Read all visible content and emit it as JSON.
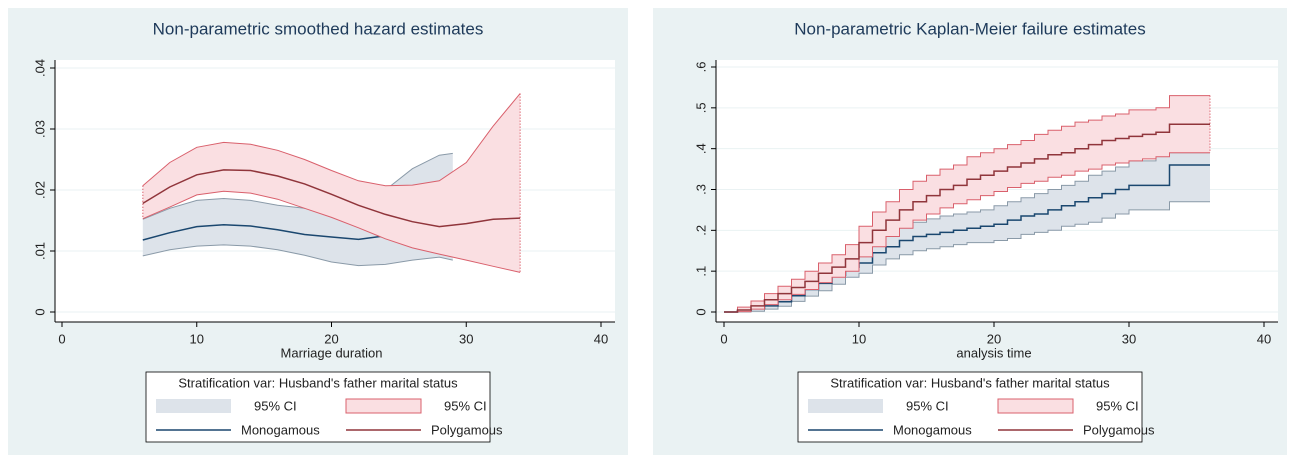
{
  "chart_data": [
    {
      "type": "line",
      "title": "Non-parametric smoothed hazard estimates",
      "xlabel": "Marriage duration",
      "legend_title": "Stratification var: Husband's father marital status",
      "xlim": [
        0,
        40
      ],
      "xticks": [
        0,
        10,
        20,
        30,
        40
      ],
      "ylim": [
        0,
        0.04
      ],
      "yticks": [
        0,
        {
          "value": 0.01,
          "label": ".01"
        },
        {
          "value": 0.02,
          "label": ".02"
        },
        {
          "value": 0.03,
          "label": ".03"
        },
        {
          "value": 0.04,
          "label": ".04"
        }
      ],
      "grid": true,
      "series": [
        {
          "name": "Monogamous",
          "ci_name": "95% CI",
          "color": "#1a476f",
          "ci_fill": "#dde3ea",
          "ci_stroke": "#8a9aa8",
          "x": [
            6,
            8,
            10,
            12,
            14,
            16,
            18,
            20,
            22,
            24,
            26,
            28,
            29
          ],
          "values": [
            0.0118,
            0.013,
            0.014,
            0.0143,
            0.0141,
            0.0135,
            0.0127,
            0.0123,
            0.0119,
            0.0125,
            0.0138,
            0.015,
            0.0149
          ],
          "lower": [
            0.0092,
            0.0102,
            0.0108,
            0.011,
            0.0108,
            0.0102,
            0.0093,
            0.0082,
            0.0076,
            0.0078,
            0.0085,
            0.009,
            0.0085
          ],
          "upper": [
            0.0152,
            0.017,
            0.0183,
            0.0186,
            0.0183,
            0.0175,
            0.017,
            0.0168,
            0.0175,
            0.02,
            0.0235,
            0.0257,
            0.026
          ]
        },
        {
          "name": "Polygamous",
          "ci_name": "95% CI",
          "color": "#90353b",
          "ci_fill": "#fadfe2",
          "ci_stroke": "#d9606c",
          "x": [
            6,
            8,
            10,
            12,
            14,
            16,
            18,
            20,
            22,
            24,
            26,
            28,
            30,
            32,
            34
          ],
          "values": [
            0.0178,
            0.0205,
            0.0225,
            0.0233,
            0.0232,
            0.0223,
            0.021,
            0.0193,
            0.0175,
            0.016,
            0.0148,
            0.014,
            0.0145,
            0.0152,
            0.0154
          ],
          "lower": [
            0.0153,
            0.0172,
            0.0192,
            0.0198,
            0.0195,
            0.0185,
            0.017,
            0.0155,
            0.0138,
            0.012,
            0.0105,
            0.0095,
            0.0085,
            0.0075,
            0.0065
          ],
          "upper": [
            0.0207,
            0.0245,
            0.027,
            0.0278,
            0.0275,
            0.0265,
            0.025,
            0.0232,
            0.0215,
            0.0207,
            0.0208,
            0.0215,
            0.0245,
            0.0305,
            0.0358
          ]
        }
      ]
    },
    {
      "type": "step",
      "title": "Non-parametric Kaplan-Meier failure estimates",
      "xlabel": "analysis time",
      "legend_title": "Stratification var: Husband's father marital status",
      "xlim": [
        0,
        40
      ],
      "xticks": [
        0,
        10,
        20,
        30,
        40
      ],
      "ylim": [
        0,
        0.6
      ],
      "yticks": [
        0,
        {
          "value": 0.1,
          "label": ".1"
        },
        {
          "value": 0.2,
          "label": ".2"
        },
        {
          "value": 0.3,
          "label": ".3"
        },
        {
          "value": 0.4,
          "label": ".4"
        },
        {
          "value": 0.5,
          "label": ".5"
        },
        {
          "value": 0.6,
          "label": ".6"
        }
      ],
      "grid": true,
      "series": [
        {
          "name": "Monogamous",
          "ci_name": "95% CI",
          "color": "#1a476f",
          "ci_fill": "#dde3ea",
          "ci_stroke": "#8a9aa8",
          "x": [
            0,
            1,
            2,
            3,
            4,
            5,
            6,
            7,
            8,
            9,
            10,
            11,
            12,
            13,
            14,
            15,
            16,
            17,
            18,
            19,
            20,
            21,
            22,
            23,
            24,
            25,
            26,
            27,
            28,
            29,
            30,
            31,
            32,
            33,
            36
          ],
          "values": [
            0,
            0.003,
            0.008,
            0.015,
            0.025,
            0.04,
            0.055,
            0.07,
            0.09,
            0.11,
            0.12,
            0.145,
            0.16,
            0.175,
            0.185,
            0.19,
            0.195,
            0.2,
            0.205,
            0.21,
            0.215,
            0.225,
            0.235,
            0.24,
            0.25,
            0.26,
            0.27,
            0.28,
            0.29,
            0.3,
            0.31,
            0.31,
            0.31,
            0.36,
            0.36
          ],
          "lower": [
            0,
            0,
            0.002,
            0.007,
            0.014,
            0.026,
            0.039,
            0.052,
            0.068,
            0.085,
            0.095,
            0.115,
            0.13,
            0.14,
            0.15,
            0.155,
            0.16,
            0.165,
            0.17,
            0.17,
            0.175,
            0.18,
            0.19,
            0.195,
            0.2,
            0.21,
            0.215,
            0.22,
            0.23,
            0.24,
            0.25,
            0.25,
            0.25,
            0.27,
            0.27
          ],
          "upper": [
            0,
            0.008,
            0.016,
            0.025,
            0.038,
            0.056,
            0.073,
            0.09,
            0.113,
            0.135,
            0.148,
            0.175,
            0.19,
            0.21,
            0.22,
            0.228,
            0.235,
            0.24,
            0.245,
            0.25,
            0.26,
            0.27,
            0.28,
            0.29,
            0.3,
            0.31,
            0.32,
            0.335,
            0.345,
            0.355,
            0.37,
            0.37,
            0.39,
            0.39,
            0.39
          ]
        },
        {
          "name": "Polygamous",
          "ci_name": "95% CI",
          "color": "#90353b",
          "ci_fill": "#fadfe2",
          "ci_stroke": "#d9606c",
          "x": [
            0,
            1,
            2,
            3,
            4,
            5,
            6,
            7,
            8,
            9,
            10,
            11,
            12,
            13,
            14,
            15,
            16,
            17,
            18,
            19,
            20,
            21,
            22,
            23,
            24,
            25,
            26,
            27,
            28,
            29,
            30,
            31,
            32,
            33,
            36
          ],
          "values": [
            0,
            0.005,
            0.015,
            0.03,
            0.045,
            0.06,
            0.075,
            0.095,
            0.11,
            0.13,
            0.17,
            0.2,
            0.225,
            0.25,
            0.27,
            0.285,
            0.3,
            0.31,
            0.325,
            0.335,
            0.345,
            0.355,
            0.365,
            0.375,
            0.385,
            0.39,
            0.4,
            0.41,
            0.42,
            0.425,
            0.43,
            0.435,
            0.44,
            0.46,
            0.46
          ],
          "lower": [
            0,
            0.001,
            0.007,
            0.018,
            0.03,
            0.043,
            0.055,
            0.072,
            0.085,
            0.1,
            0.135,
            0.16,
            0.185,
            0.205,
            0.225,
            0.24,
            0.255,
            0.265,
            0.275,
            0.285,
            0.295,
            0.305,
            0.315,
            0.32,
            0.33,
            0.335,
            0.345,
            0.35,
            0.36,
            0.365,
            0.37,
            0.375,
            0.38,
            0.39,
            0.39
          ],
          "upper": [
            0,
            0.012,
            0.027,
            0.045,
            0.063,
            0.08,
            0.1,
            0.12,
            0.14,
            0.165,
            0.21,
            0.245,
            0.27,
            0.3,
            0.32,
            0.335,
            0.35,
            0.36,
            0.38,
            0.39,
            0.4,
            0.41,
            0.42,
            0.435,
            0.445,
            0.455,
            0.465,
            0.47,
            0.48,
            0.485,
            0.495,
            0.495,
            0.5,
            0.53,
            0.53
          ]
        }
      ]
    }
  ]
}
